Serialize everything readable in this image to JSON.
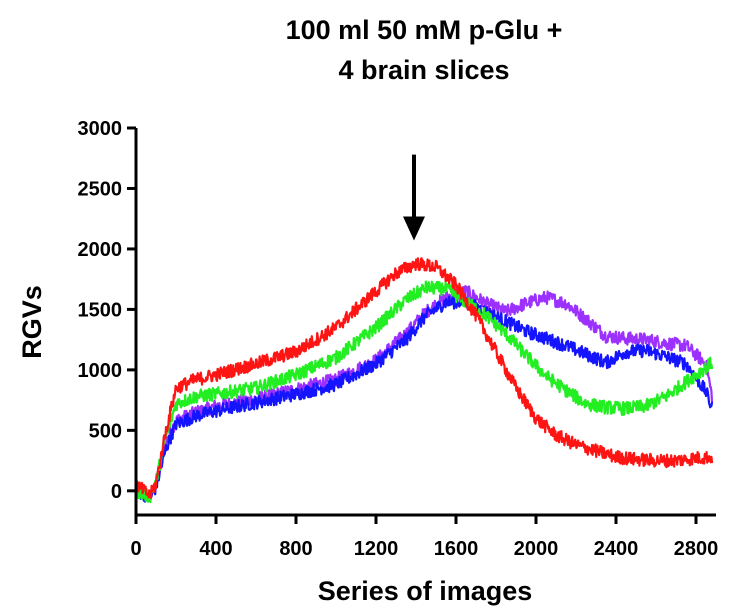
{
  "chart_data": {
    "type": "line",
    "title_lines": [
      "100 ml 50 mM p-Glu +",
      "4 brain slices"
    ],
    "xlabel": "Series of images",
    "ylabel": "RGVs",
    "xlim": [
      0,
      2900
    ],
    "ylim": [
      -200,
      3000
    ],
    "x_ticks": [
      0,
      400,
      800,
      1200,
      1600,
      2000,
      2400,
      2800
    ],
    "y_ticks": [
      0,
      500,
      1000,
      1500,
      2000,
      2500,
      3000
    ],
    "x_tick_labels": [
      "0",
      "400",
      "800",
      "1200",
      "1600",
      "2000",
      "2400",
      "2800"
    ],
    "y_tick_labels": [
      "0",
      "500",
      "1000",
      "1500",
      "2000",
      "2500",
      "3000"
    ],
    "grid": false,
    "annotation": {
      "type": "arrow",
      "x": 1390,
      "y_from": 2780,
      "y_to": 2070,
      "color": "#000000"
    },
    "series": [
      {
        "color": "#9b30ff",
        "x": [
          0,
          40,
          70,
          100,
          150,
          200,
          300,
          400,
          600,
          800,
          1000,
          1200,
          1350,
          1450,
          1550,
          1650,
          1750,
          1850,
          1950,
          2050,
          2150,
          2250,
          2350,
          2450,
          2550,
          2650,
          2750,
          2850,
          2880
        ],
        "y": [
          0,
          -20,
          -60,
          50,
          400,
          580,
          650,
          700,
          760,
          840,
          920,
          1080,
          1300,
          1480,
          1600,
          1650,
          1550,
          1480,
          1550,
          1600,
          1550,
          1420,
          1280,
          1260,
          1250,
          1220,
          1200,
          1050,
          780
        ]
      },
      {
        "color": "#1414ff",
        "x": [
          0,
          40,
          70,
          100,
          150,
          200,
          300,
          400,
          600,
          800,
          1000,
          1200,
          1350,
          1450,
          1550,
          1650,
          1750,
          1850,
          1950,
          2050,
          2150,
          2250,
          2350,
          2450,
          2550,
          2650,
          2750,
          2850,
          2880
        ],
        "y": [
          0,
          -30,
          -60,
          30,
          350,
          550,
          620,
          660,
          730,
          800,
          880,
          1050,
          1250,
          1450,
          1560,
          1560,
          1480,
          1400,
          1320,
          1260,
          1200,
          1130,
          1060,
          1150,
          1160,
          1110,
          1050,
          820,
          680
        ]
      },
      {
        "color": "#22ee22",
        "x": [
          0,
          40,
          70,
          100,
          150,
          200,
          300,
          400,
          600,
          800,
          1000,
          1200,
          1350,
          1450,
          1550,
          1650,
          1750,
          1850,
          1950,
          2050,
          2150,
          2250,
          2350,
          2450,
          2550,
          2650,
          2750,
          2850,
          2880
        ],
        "y": [
          0,
          -30,
          -50,
          80,
          450,
          720,
          780,
          800,
          850,
          960,
          1100,
          1350,
          1580,
          1680,
          1670,
          1560,
          1450,
          1300,
          1120,
          950,
          830,
          720,
          690,
          680,
          700,
          780,
          900,
          1020,
          1060
        ]
      },
      {
        "color": "#ff1414",
        "x": [
          0,
          40,
          70,
          100,
          150,
          200,
          300,
          400,
          600,
          800,
          1000,
          1200,
          1300,
          1400,
          1500,
          1600,
          1700,
          1800,
          1900,
          2000,
          2100,
          2200,
          2300,
          2400,
          2500,
          2600,
          2700,
          2800,
          2880
        ],
        "y": [
          50,
          0,
          -40,
          60,
          500,
          850,
          920,
          960,
          1050,
          1150,
          1350,
          1650,
          1800,
          1880,
          1850,
          1700,
          1450,
          1150,
          850,
          600,
          460,
          380,
          330,
          280,
          260,
          250,
          250,
          270,
          280
        ]
      }
    ]
  }
}
